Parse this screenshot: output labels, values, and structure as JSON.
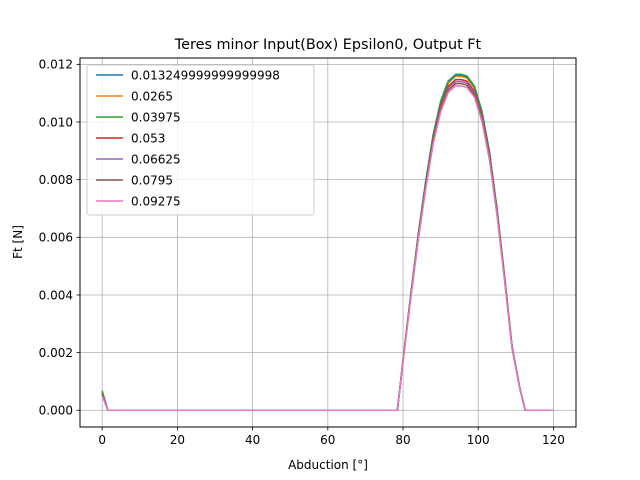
{
  "chart_data": {
    "type": "line",
    "title": "Teres minor Input(Box) Epsilon0, Output Ft",
    "xlabel": "Abduction [°]",
    "ylabel": "Ft [N]",
    "xlim": [
      -5.9,
      126
    ],
    "ylim": [
      -0.00058,
      0.01222
    ],
    "xticks": [
      0,
      20,
      40,
      60,
      80,
      100,
      120
    ],
    "yticks": [
      0.0,
      0.002,
      0.004,
      0.006,
      0.008,
      0.01,
      0.012
    ],
    "ytick_labels": [
      "0.000",
      "0.002",
      "0.004",
      "0.006",
      "0.008",
      "0.010",
      "0.012"
    ],
    "grid": true,
    "legend_position": "top-left",
    "x": [
      0,
      1.5,
      77,
      78.5,
      80,
      82,
      84,
      86,
      88,
      90,
      92,
      94,
      95.5,
      97,
      99,
      101,
      103,
      105,
      107,
      109,
      111,
      112.5,
      113.5,
      120
    ],
    "shape": [
      0.0,
      0.0,
      0.0,
      0.0,
      0.15,
      0.34,
      0.52,
      0.68,
      0.82,
      0.92,
      0.98,
      1.0,
      1.0,
      0.995,
      0.965,
      0.89,
      0.77,
      0.6,
      0.4,
      0.19,
      0.07,
      0.0,
      0.0,
      0.0
    ],
    "series": [
      {
        "name": "0.013249999999999998",
        "color": "#1f77b4",
        "peak": 0.01165,
        "start": 0.00062
      },
      {
        "name": "0.0265",
        "color": "#ff7f0e",
        "peak": 0.01158,
        "start": 0.0006
      },
      {
        "name": "0.03975",
        "color": "#2ca02c",
        "peak": 0.01162,
        "start": 0.00068
      },
      {
        "name": "0.053",
        "color": "#d62728",
        "peak": 0.01147,
        "start": 0.00058
      },
      {
        "name": "0.06625",
        "color": "#9467bd",
        "peak": 0.0114,
        "start": 0.00055
      },
      {
        "name": "0.0795",
        "color": "#8c564b",
        "peak": 0.01133,
        "start": 0.00052
      },
      {
        "name": "0.09275",
        "color": "#e377c2",
        "peak": 0.01125,
        "start": 0.0005
      }
    ]
  }
}
